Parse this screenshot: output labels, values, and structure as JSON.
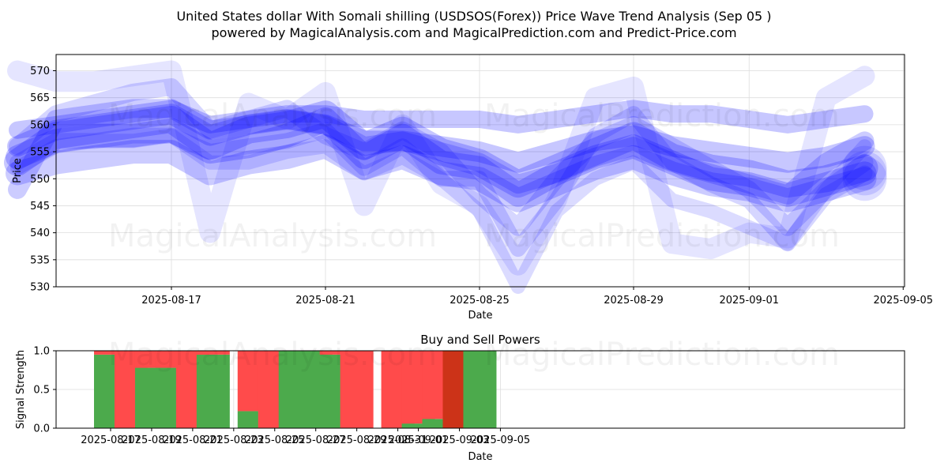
{
  "title_line1": "United States dollar With Somali shilling (USDSOS(Forex)) Price Wave Trend Analysis (Sep 05 )",
  "title_line2": "powered by MagicalAnalysis.com and MagicalPrediction.com and Predict-Price.com",
  "watermarks": [
    "MagicalAnalysis.com",
    "MagicalPrediction.com"
  ],
  "colors": {
    "wave": "#0000ff",
    "buy": "#4caa4c",
    "sell": "#ff4b4b",
    "sell_dark": "#cc3318",
    "grid": "#dddddd"
  },
  "chart_data": [
    {
      "type": "line",
      "title": "",
      "xlabel": "Date",
      "ylabel": "Price",
      "ylim": [
        530,
        573
      ],
      "yticks": [
        530,
        535,
        540,
        545,
        550,
        555,
        560,
        565,
        570
      ],
      "xticks": [
        "2025-08-17",
        "2025-08-21",
        "2025-08-25",
        "2025-08-29",
        "2025-09-01",
        "2025-09-05"
      ],
      "x": [
        "2025-08-13",
        "2025-08-14",
        "2025-08-15",
        "2025-08-16",
        "2025-08-17",
        "2025-08-18",
        "2025-08-19",
        "2025-08-20",
        "2025-08-21",
        "2025-08-22",
        "2025-08-23",
        "2025-08-24",
        "2025-08-25",
        "2025-08-26",
        "2025-08-27",
        "2025-08-28",
        "2025-08-29",
        "2025-08-30",
        "2025-08-31",
        "2025-09-01",
        "2025-09-02",
        "2025-09-03",
        "2025-09-04"
      ],
      "series": [
        {
          "values": [
            553,
            558,
            559,
            560,
            561,
            556,
            559,
            560,
            562,
            556,
            559,
            555,
            553,
            549,
            552,
            555,
            558,
            554,
            552,
            551,
            549,
            550,
            552
          ]
        },
        {
          "values": [
            554,
            557,
            558,
            558,
            559,
            555,
            556,
            558,
            561,
            554,
            558,
            553,
            552,
            547,
            551,
            554,
            556,
            553,
            550,
            549,
            547,
            549,
            551
          ]
        },
        {
          "values": [
            551,
            553,
            554,
            555,
            555,
            551,
            553,
            554,
            556,
            552,
            554,
            551,
            550,
            546,
            549,
            552,
            554,
            551,
            549,
            548,
            546,
            548,
            550
          ]
        },
        {
          "values": [
            556,
            559,
            560,
            561,
            562,
            558,
            560,
            561,
            560,
            557,
            557,
            556,
            555,
            553,
            555,
            557,
            558,
            556,
            555,
            554,
            553,
            554,
            556
          ]
        },
        {
          "values": [
            559,
            560,
            561,
            562,
            563,
            560,
            561,
            562,
            562,
            561,
            561,
            561,
            561,
            560,
            561,
            562,
            563,
            562,
            562,
            561,
            560,
            561,
            562
          ]
        },
        {
          "values": [
            548,
            561,
            562,
            563,
            563,
            559,
            560,
            561,
            560,
            556,
            557,
            555,
            553,
            549,
            551,
            554,
            556,
            553,
            551,
            549,
            547,
            553,
            557
          ]
        },
        {
          "values": [
            556,
            562,
            564,
            566,
            567,
            559,
            561,
            563,
            558,
            555,
            559,
            555,
            547,
            541,
            550,
            557,
            560,
            556,
            552,
            548,
            541,
            548,
            553
          ]
        },
        {
          "values": [
            553,
            557,
            557,
            558,
            558,
            555,
            556,
            557,
            559,
            552,
            556,
            550,
            550,
            537,
            546,
            558,
            562,
            553,
            549,
            546,
            538,
            547,
            551
          ]
        },
        {
          "values": [
            570,
            568,
            568,
            569,
            570,
            540,
            564,
            561,
            566,
            545,
            560,
            549,
            545,
            534,
            546,
            565,
            567,
            538,
            537,
            540,
            539,
            565,
            569
          ]
        },
        {
          "values": [
            552,
            556,
            557,
            557,
            558,
            553,
            553,
            555,
            556,
            551,
            554,
            550,
            544,
            530,
            544,
            550,
            553,
            546,
            544,
            541,
            538,
            548,
            556
          ]
        }
      ]
    },
    {
      "type": "bar",
      "title": "Buy and Sell Powers",
      "xlabel": "Date",
      "ylabel": "Signal Strength",
      "ylim": [
        0,
        1
      ],
      "yticks": [
        "0.0",
        "0.5",
        "1.0"
      ],
      "xticks": [
        "2025-08-17",
        "2025-08-19",
        "2025-08-21",
        "2025-08-23",
        "2025-08-25",
        "2025-08-27",
        "2025-08-29",
        "2025-08-31",
        "2025-09-01",
        "2025-09-03",
        "2025-09-05"
      ],
      "categories": [
        "2025-08-17",
        "2025-08-18",
        "2025-08-19",
        "2025-08-20",
        "2025-08-21",
        "2025-08-22",
        "2025-08-24",
        "2025-08-25",
        "2025-08-26",
        "2025-08-27",
        "2025-08-28",
        "2025-08-29",
        "2025-08-31",
        "2025-09-01",
        "2025-09-02",
        "2025-09-03",
        "2025-09-04"
      ],
      "buy": [
        0.95,
        0.0,
        0.78,
        0.78,
        0.0,
        0.95,
        0.22,
        0.0,
        1.0,
        1.0,
        0.95,
        0.0,
        0.0,
        0.06,
        0.12,
        0.0,
        1.0
      ],
      "sell": [
        0.05,
        1.0,
        0.22,
        0.22,
        1.0,
        0.05,
        0.78,
        1.0,
        0.0,
        0.0,
        0.05,
        1.0,
        1.0,
        0.94,
        0.88,
        1.0,
        0.0
      ],
      "sell_dark": [
        false,
        false,
        false,
        false,
        false,
        false,
        false,
        false,
        false,
        false,
        false,
        false,
        false,
        false,
        false,
        true,
        false
      ]
    }
  ]
}
